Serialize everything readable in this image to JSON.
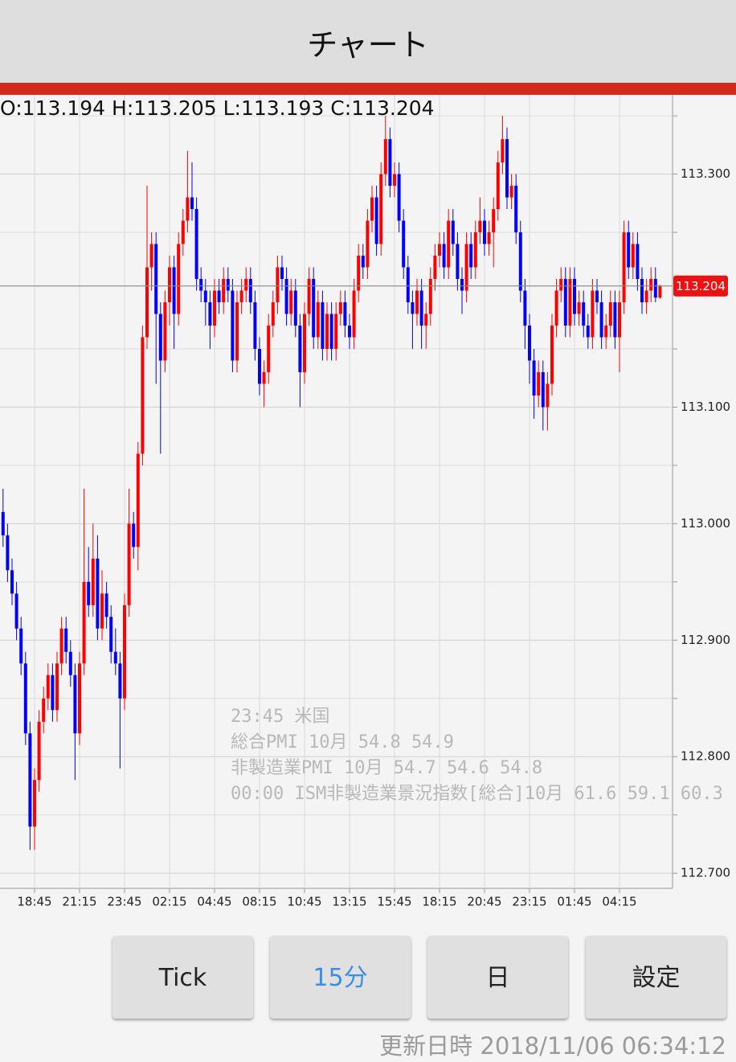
{
  "header": {
    "title": "チャート"
  },
  "chart_data": {
    "type": "candlestick",
    "ohlc_labels": [
      "O:",
      "H:",
      "L:",
      "C:"
    ],
    "up_color": "#ff0000",
    "down_color": "#0000ff",
    "ylim": [
      112.687,
      113.368
    ],
    "yticks": [
      {
        "value": 113.3,
        "label": "113.300"
      },
      {
        "value": 113.1,
        "label": "113.100"
      },
      {
        "value": 113.0,
        "label": "113.000"
      },
      {
        "value": 112.9,
        "label": "112.900"
      },
      {
        "value": 112.8,
        "label": "112.800"
      },
      {
        "value": 112.7,
        "label": "112.700"
      }
    ],
    "minor_yticks": [
      113.35,
      113.25,
      113.15,
      113.05,
      112.95,
      112.85,
      112.75
    ],
    "grid": true,
    "categories": [
      null,
      null,
      null,
      null,
      null,
      null,
      null,
      "18:45",
      null,
      null,
      null,
      null,
      null,
      null,
      null,
      null,
      null,
      "21:15",
      null,
      null,
      null,
      null,
      null,
      null,
      null,
      null,
      null,
      "23:45",
      null,
      null,
      null,
      null,
      null,
      null,
      null,
      null,
      null,
      "02:15",
      null,
      null,
      null,
      null,
      null,
      null,
      null,
      null,
      null,
      "04:45",
      null,
      null,
      null,
      null,
      null,
      null,
      null,
      null,
      null,
      "08:15",
      null,
      null,
      null,
      null,
      null,
      null,
      null,
      null,
      null,
      "10:45",
      null,
      null,
      null,
      null,
      null,
      null,
      null,
      null,
      null,
      "13:15",
      null,
      null,
      null,
      null,
      null,
      null,
      null,
      null,
      null,
      "15:45",
      null,
      null,
      null,
      null,
      null,
      null,
      null,
      null,
      null,
      "18:15",
      null,
      null,
      null,
      null,
      null,
      null,
      null,
      null,
      null,
      "20:45",
      null,
      null,
      null,
      null,
      null,
      null,
      null,
      null,
      null,
      "23:15",
      null,
      null,
      null,
      null,
      null,
      null,
      null,
      null,
      null,
      "01:45",
      null,
      null,
      null,
      null,
      null,
      null,
      null,
      null,
      null,
      "04:15",
      null,
      null,
      null,
      null,
      null,
      null,
      null,
      null,
      null
    ],
    "candles": [
      [
        113.01,
        113.03,
        112.98,
        112.99
      ],
      [
        112.99,
        113.0,
        112.95,
        112.96
      ],
      [
        112.96,
        112.97,
        112.93,
        112.94
      ],
      [
        112.94,
        112.95,
        112.9,
        112.91
      ],
      [
        112.91,
        112.92,
        112.87,
        112.88
      ],
      [
        112.88,
        112.89,
        112.81,
        112.82
      ],
      [
        112.82,
        112.83,
        112.72,
        112.74
      ],
      [
        112.74,
        112.79,
        112.72,
        112.78
      ],
      [
        112.78,
        112.84,
        112.77,
        112.83
      ],
      [
        112.83,
        112.86,
        112.82,
        112.85
      ],
      [
        112.85,
        112.88,
        112.84,
        112.87
      ],
      [
        112.87,
        112.88,
        112.83,
        112.84
      ],
      [
        112.84,
        112.89,
        112.83,
        112.88
      ],
      [
        112.88,
        112.92,
        112.87,
        112.91
      ],
      [
        112.91,
        112.92,
        112.88,
        112.89
      ],
      [
        112.89,
        112.9,
        112.86,
        112.87
      ],
      [
        112.87,
        112.88,
        112.78,
        112.82
      ],
      [
        112.82,
        112.89,
        112.81,
        112.88
      ],
      [
        112.88,
        113.03,
        112.87,
        112.95
      ],
      [
        112.95,
        112.98,
        112.92,
        112.93
      ],
      [
        112.93,
        113.0,
        112.92,
        112.97
      ],
      [
        112.97,
        112.99,
        112.9,
        112.91
      ],
      [
        112.91,
        112.96,
        112.9,
        112.94
      ],
      [
        112.94,
        112.95,
        112.91,
        112.92
      ],
      [
        112.92,
        112.93,
        112.88,
        112.89
      ],
      [
        112.89,
        112.91,
        112.87,
        112.88
      ],
      [
        112.88,
        112.89,
        112.79,
        112.85
      ],
      [
        112.85,
        112.94,
        112.84,
        112.93
      ],
      [
        112.93,
        113.03,
        112.92,
        113.0
      ],
      [
        113.0,
        113.01,
        112.97,
        112.98
      ],
      [
        112.98,
        113.07,
        112.96,
        113.06
      ],
      [
        113.06,
        113.17,
        113.05,
        113.16
      ],
      [
        113.16,
        113.29,
        113.15,
        113.22
      ],
      [
        113.22,
        113.25,
        113.2,
        113.24
      ],
      [
        113.24,
        113.25,
        113.12,
        113.18
      ],
      [
        113.18,
        113.19,
        113.06,
        113.14
      ],
      [
        113.14,
        113.2,
        113.13,
        113.19
      ],
      [
        113.19,
        113.23,
        113.17,
        113.22
      ],
      [
        113.22,
        113.23,
        113.15,
        113.18
      ],
      [
        113.18,
        113.25,
        113.17,
        113.24
      ],
      [
        113.24,
        113.27,
        113.23,
        113.26
      ],
      [
        113.26,
        113.32,
        113.25,
        113.28
      ],
      [
        113.28,
        113.31,
        113.26,
        113.27
      ],
      [
        113.27,
        113.28,
        113.2,
        113.21
      ],
      [
        113.21,
        113.22,
        113.19,
        113.2
      ],
      [
        113.2,
        113.21,
        113.17,
        113.19
      ],
      [
        113.19,
        113.2,
        113.15,
        113.17
      ],
      [
        113.17,
        113.21,
        113.16,
        113.2
      ],
      [
        113.2,
        113.21,
        113.18,
        113.19
      ],
      [
        113.19,
        113.22,
        113.18,
        113.21
      ],
      [
        113.21,
        113.22,
        113.19,
        113.2
      ],
      [
        113.2,
        113.21,
        113.13,
        113.14
      ],
      [
        113.14,
        113.2,
        113.13,
        113.19
      ],
      [
        113.19,
        113.21,
        113.18,
        113.2
      ],
      [
        113.2,
        113.22,
        113.19,
        113.21
      ],
      [
        113.21,
        113.22,
        113.18,
        113.19
      ],
      [
        113.19,
        113.2,
        113.14,
        113.15
      ],
      [
        113.15,
        113.16,
        113.11,
        113.12
      ],
      [
        113.12,
        113.14,
        113.1,
        113.13
      ],
      [
        113.13,
        113.18,
        113.12,
        113.17
      ],
      [
        113.17,
        113.2,
        113.16,
        113.19
      ],
      [
        113.19,
        113.23,
        113.18,
        113.22
      ],
      [
        113.22,
        113.23,
        113.2,
        113.21
      ],
      [
        113.21,
        113.22,
        113.17,
        113.18
      ],
      [
        113.18,
        113.21,
        113.17,
        113.2
      ],
      [
        113.2,
        113.21,
        113.16,
        113.17
      ],
      [
        113.17,
        113.18,
        113.1,
        113.13
      ],
      [
        113.13,
        113.19,
        113.12,
        113.18
      ],
      [
        113.18,
        113.22,
        113.17,
        113.21
      ],
      [
        113.21,
        113.22,
        113.15,
        113.16
      ],
      [
        113.16,
        113.2,
        113.15,
        113.19
      ],
      [
        113.19,
        113.2,
        113.14,
        113.15
      ],
      [
        113.15,
        113.19,
        113.14,
        113.18
      ],
      [
        113.18,
        113.19,
        113.14,
        113.15
      ],
      [
        113.15,
        113.19,
        113.14,
        113.18
      ],
      [
        113.18,
        113.2,
        113.17,
        113.19
      ],
      [
        113.19,
        113.2,
        113.16,
        113.17
      ],
      [
        113.17,
        113.18,
        113.15,
        113.16
      ],
      [
        113.16,
        113.21,
        113.15,
        113.2
      ],
      [
        113.2,
        113.24,
        113.19,
        113.23
      ],
      [
        113.23,
        113.24,
        113.21,
        113.22
      ],
      [
        113.22,
        113.27,
        113.21,
        113.26
      ],
      [
        113.26,
        113.29,
        113.25,
        113.28
      ],
      [
        113.28,
        113.29,
        113.23,
        113.24
      ],
      [
        113.24,
        113.31,
        113.23,
        113.3
      ],
      [
        113.3,
        113.35,
        113.29,
        113.33
      ],
      [
        113.33,
        113.34,
        113.28,
        113.29
      ],
      [
        113.29,
        113.31,
        113.28,
        113.3
      ],
      [
        113.3,
        113.31,
        113.25,
        113.26
      ],
      [
        113.26,
        113.27,
        113.21,
        113.22
      ],
      [
        113.22,
        113.23,
        113.18,
        113.19
      ],
      [
        113.19,
        113.2,
        113.15,
        113.18
      ],
      [
        113.18,
        113.21,
        113.17,
        113.2
      ],
      [
        113.2,
        113.21,
        113.15,
        113.17
      ],
      [
        113.17,
        113.19,
        113.15,
        113.18
      ],
      [
        113.18,
        113.22,
        113.17,
        113.21
      ],
      [
        113.21,
        113.24,
        113.2,
        113.23
      ],
      [
        113.23,
        113.25,
        113.22,
        113.24
      ],
      [
        113.24,
        113.25,
        113.21,
        113.22
      ],
      [
        113.22,
        113.27,
        113.21,
        113.26
      ],
      [
        113.26,
        113.27,
        113.23,
        113.24
      ],
      [
        113.24,
        113.25,
        113.2,
        113.21
      ],
      [
        113.21,
        113.22,
        113.18,
        113.2
      ],
      [
        113.2,
        113.25,
        113.19,
        113.24
      ],
      [
        113.24,
        113.25,
        113.21,
        113.22
      ],
      [
        113.22,
        113.26,
        113.21,
        113.25
      ],
      [
        113.25,
        113.28,
        113.24,
        113.26
      ],
      [
        113.26,
        113.27,
        113.23,
        113.24
      ],
      [
        113.24,
        113.26,
        113.23,
        113.25
      ],
      [
        113.25,
        113.28,
        113.22,
        113.27
      ],
      [
        113.27,
        113.32,
        113.26,
        113.31
      ],
      [
        113.31,
        113.35,
        113.3,
        113.33
      ],
      [
        113.33,
        113.34,
        113.27,
        113.28
      ],
      [
        113.28,
        113.3,
        113.27,
        113.29
      ],
      [
        113.29,
        113.3,
        113.24,
        113.25
      ],
      [
        113.25,
        113.26,
        113.19,
        113.2
      ],
      [
        113.2,
        113.21,
        113.15,
        113.17
      ],
      [
        113.17,
        113.18,
        113.12,
        113.14
      ],
      [
        113.14,
        113.15,
        113.09,
        113.11
      ],
      [
        113.11,
        113.14,
        113.1,
        113.13
      ],
      [
        113.13,
        113.14,
        113.08,
        113.1
      ],
      [
        113.1,
        113.13,
        113.08,
        113.12
      ],
      [
        113.12,
        113.18,
        113.11,
        113.17
      ],
      [
        113.17,
        113.21,
        113.16,
        113.2
      ],
      [
        113.2,
        113.22,
        113.19,
        113.21
      ],
      [
        113.21,
        113.22,
        113.16,
        113.17
      ],
      [
        113.17,
        113.22,
        113.16,
        113.21
      ],
      [
        113.21,
        113.22,
        113.17,
        113.18
      ],
      [
        113.18,
        113.2,
        113.17,
        113.19
      ],
      [
        113.19,
        113.2,
        113.16,
        113.17
      ],
      [
        113.17,
        113.18,
        113.15,
        113.16
      ],
      [
        113.16,
        113.21,
        113.15,
        113.2
      ],
      [
        113.2,
        113.21,
        113.18,
        113.19
      ],
      [
        113.19,
        113.2,
        113.15,
        113.16
      ],
      [
        113.16,
        113.18,
        113.15,
        113.17
      ],
      [
        113.17,
        113.2,
        113.16,
        113.19
      ],
      [
        113.19,
        113.2,
        113.15,
        113.16
      ],
      [
        113.16,
        113.2,
        113.13,
        113.19
      ],
      [
        113.19,
        113.26,
        113.18,
        113.25
      ],
      [
        113.25,
        113.26,
        113.21,
        113.22
      ],
      [
        113.22,
        113.25,
        113.21,
        113.24
      ],
      [
        113.24,
        113.25,
        113.2,
        113.21
      ],
      [
        113.21,
        113.22,
        113.18,
        113.19
      ],
      [
        113.19,
        113.21,
        113.18,
        113.2
      ],
      [
        113.2,
        113.22,
        113.19,
        113.21
      ],
      [
        113.21,
        113.22,
        113.19,
        113.194
      ],
      [
        113.194,
        113.205,
        113.193,
        113.204
      ]
    ],
    "annotations": [
      "23:45 米国",
      "総合PMI 10月 54.8 54.9",
      "非製造業PMI 10月 54.7 54.6 54.8",
      "00:00 ISM非製造業景況指数[総合]10月 61.6 59.1 60.3"
    ]
  },
  "buttons": [
    "Tick",
    "15分",
    "日",
    "設定"
  ],
  "footer": {
    "label": "更新日時",
    "timestamp": "2018/11/06 06:34:12"
  }
}
